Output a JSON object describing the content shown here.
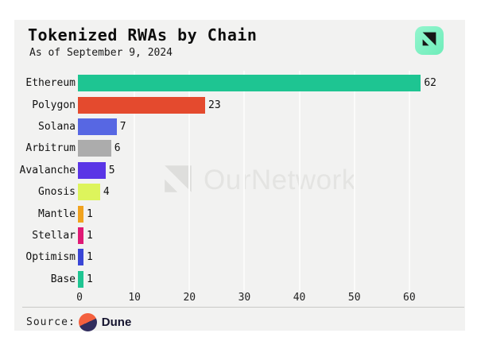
{
  "header": {
    "title": "Tokenized RWAs by Chain",
    "subtitle": "As of September 9, 2024",
    "logo_icon": "ournetwork-logo",
    "logo_bg": "#7FF0C4",
    "logo_glyph_color": "#161616"
  },
  "watermark": {
    "text": "OurNetwork",
    "icon": "ournetwork-logo",
    "text_color": "#E4E4E2",
    "icon_color": "#DEDEDC"
  },
  "chart_data": {
    "type": "bar",
    "orientation": "horizontal",
    "title": "Tokenized RWAs by Chain",
    "subtitle": "As of September 9, 2024",
    "categories": [
      "Ethereum",
      "Polygon",
      "Solana",
      "Arbitrum",
      "Avalanche",
      "Gnosis",
      "Mantle",
      "Stellar",
      "Optimism",
      "Base"
    ],
    "values": [
      62,
      23,
      7,
      6,
      5,
      4,
      1,
      1,
      1,
      1
    ],
    "bar_colors": [
      "#1EC592",
      "#E44A2E",
      "#5767E3",
      "#ACACAC",
      "#5A35E6",
      "#DDF45C",
      "#F0A31F",
      "#DF1A75",
      "#3A46D6",
      "#1FC592"
    ],
    "x_ticks": [
      0,
      10,
      20,
      30,
      40,
      50,
      60
    ],
    "xlim": [
      0,
      70
    ],
    "grid": true,
    "gridline_color": "#FBFBFA",
    "background_color": "#F2F2F1",
    "value_labels_shown": true
  },
  "footer": {
    "source_label": "Source:",
    "source_name": "Dune",
    "source_icon": "dune-logo",
    "dune_orange": "#F4603E",
    "dune_navy": "#312D5E"
  }
}
